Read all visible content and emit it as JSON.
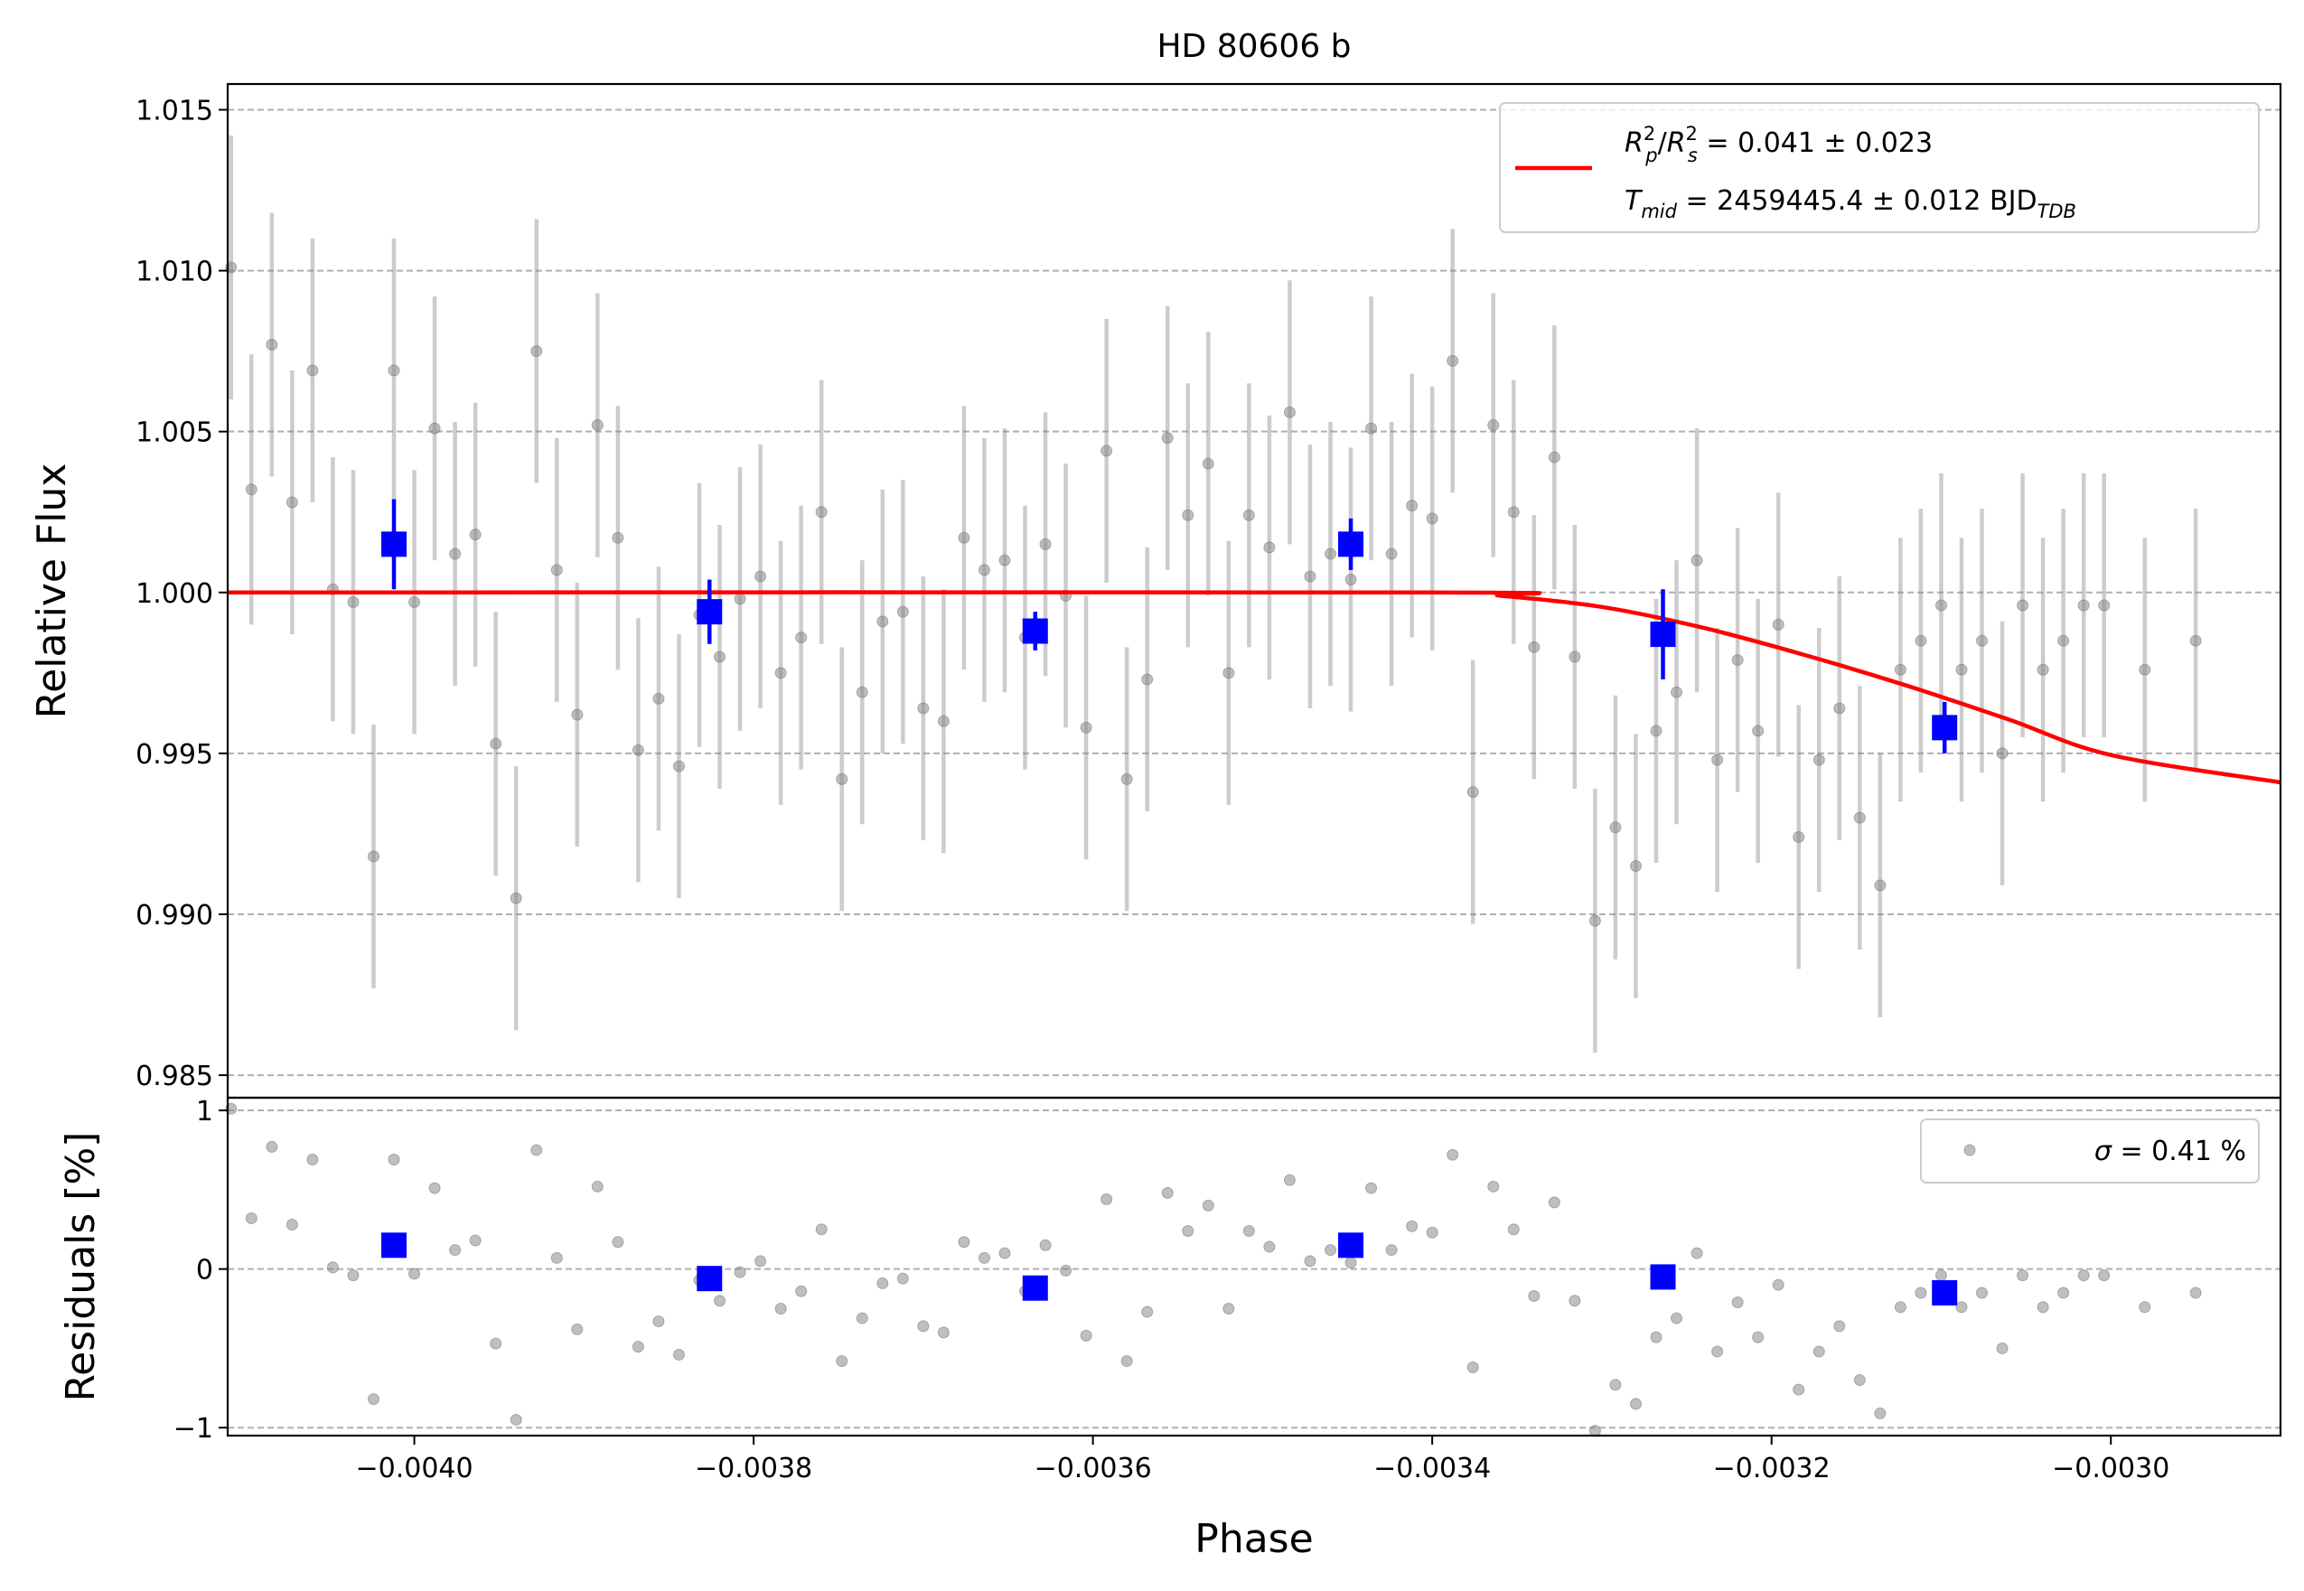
{
  "chart_data": [
    {
      "type": "scatter",
      "panel": "top",
      "title": "HD 80606 b",
      "xlabel": "",
      "ylabel": "Relative Flux",
      "xlim": [
        -0.00411,
        -0.0029
      ],
      "ylim": [
        0.9843,
        1.0158
      ],
      "yticks": [
        0.985,
        0.99,
        0.995,
        1.0,
        1.005,
        1.01,
        1.015
      ],
      "ytick_labels": [
        "0.985",
        "0.990",
        "0.995",
        "1.000",
        "1.005",
        "1.010",
        "1.015"
      ],
      "grid": "horizontal dashed",
      "legend_position": "top-right",
      "legend": {
        "line1": {
          "a": "R",
          "a_sup": "2",
          "a_sub": "p",
          "slash": "/",
          "b": "R",
          "b_sup": "2",
          "b_sub": "s",
          "rest": " = 0.041 ± 0.023"
        },
        "line2": {
          "a": "T",
          "a_sub": "mid",
          "rest": " = 2459445.4 ± 0.012 BJD",
          "unit_sub": "TDB"
        }
      },
      "model": {
        "color": "#ff0000",
        "x": [
          -0.00411,
          -0.0034,
          -0.00336,
          -0.0033,
          -0.00324,
          -0.00318,
          -0.00312,
          -0.00306,
          -0.003,
          -0.0029
        ],
        "y": [
          1.0,
          1.0,
          0.9999,
          0.99955,
          0.9989,
          0.99805,
          0.9971,
          0.99605,
          0.99495,
          0.9941
        ]
      },
      "raw": {
        "color": "#808080",
        "x": [
          -0.004108,
          -0.004096,
          -0.004084,
          -0.004072,
          -0.00406,
          -0.004048,
          -0.004036,
          -0.004024,
          -0.004012,
          -0.004,
          -0.003988,
          -0.003976,
          -0.003964,
          -0.003952,
          -0.00394,
          -0.003928,
          -0.003916,
          -0.003904,
          -0.003892,
          -0.00388,
          -0.003868,
          -0.003856,
          -0.003844,
          -0.003832,
          -0.00382,
          -0.003808,
          -0.003796,
          -0.003784,
          -0.003772,
          -0.00376,
          -0.003748,
          -0.003736,
          -0.003724,
          -0.003712,
          -0.0037,
          -0.003688,
          -0.003676,
          -0.003664,
          -0.003652,
          -0.00364,
          -0.003628,
          -0.003616,
          -0.003604,
          -0.003592,
          -0.00358,
          -0.003568,
          -0.003556,
          -0.003544,
          -0.003532,
          -0.00352,
          -0.003508,
          -0.003496,
          -0.003484,
          -0.003472,
          -0.00346,
          -0.003448,
          -0.003436,
          -0.003424,
          -0.003412,
          -0.0034,
          -0.003388,
          -0.003376,
          -0.003364,
          -0.003352,
          -0.00334,
          -0.003328,
          -0.003316,
          -0.003304,
          -0.003292,
          -0.00328,
          -0.003268,
          -0.003256,
          -0.003244,
          -0.003232,
          -0.00322,
          -0.003208,
          -0.003196,
          -0.003184,
          -0.003172,
          -0.00316,
          -0.003148,
          -0.003136,
          -0.003124,
          -0.003112,
          -0.0031,
          -0.003088,
          -0.003076,
          -0.003064,
          -0.003052,
          -0.00304,
          -0.003028,
          -0.003016,
          -0.003004,
          -0.00298,
          -0.00295
        ],
        "y": [
          1.0101,
          1.0032,
          1.0077,
          1.0028,
          1.0069,
          1.0001,
          0.9997,
          0.9918,
          1.0069,
          0.9997,
          1.0051,
          1.0012,
          1.0018,
          0.9953,
          0.9905,
          1.0075,
          1.0007,
          0.9962,
          1.0052,
          1.0017,
          0.9951,
          0.9967,
          0.9946,
          0.9993,
          0.998,
          0.9998,
          1.0005,
          0.9975,
          0.9986,
          1.0025,
          0.9942,
          0.9969,
          0.9991,
          0.9994,
          0.9964,
          0.996,
          1.0017,
          1.0007,
          1.001,
          0.9986,
          1.0015,
          0.9999,
          0.9958,
          1.0044,
          0.9942,
          0.9973,
          1.0048,
          1.0024,
          1.004,
          0.9975,
          1.0024,
          1.0014,
          1.0056,
          1.0005,
          1.0012,
          1.0004,
          1.0051,
          1.0012,
          1.0027,
          1.0023,
          1.0072,
          0.9938,
          1.0052,
          1.0025,
          0.9983,
          1.0042,
          0.998,
          0.9898,
          0.9927,
          0.9915,
          0.9957,
          0.9969,
          1.001,
          0.9948,
          0.9979,
          0.9957,
          0.999,
          0.9924,
          0.9948,
          0.9964,
          0.993,
          0.9909,
          0.9976,
          0.9985,
          0.9996,
          0.9976,
          0.9985,
          0.995,
          0.9996,
          0.9976,
          0.9985,
          0.9996,
          0.9996,
          0.9976,
          0.9985
        ],
        "err": [
          0.0041,
          0.0042,
          0.0041,
          0.0041,
          0.0041,
          0.0041,
          0.0041,
          0.0041,
          0.0041,
          0.0041,
          0.0041,
          0.0041,
          0.0041,
          0.0041,
          0.0041,
          0.0041,
          0.0041,
          0.0041,
          0.0041,
          0.0041,
          0.0041,
          0.0041,
          0.0041,
          0.0041,
          0.0041,
          0.0041,
          0.0041,
          0.0041,
          0.0041,
          0.0041,
          0.0041,
          0.0041,
          0.0041,
          0.0041,
          0.0041,
          0.0041,
          0.0041,
          0.0041,
          0.0041,
          0.0041,
          0.0041,
          0.0041,
          0.0041,
          0.0041,
          0.0041,
          0.0041,
          0.0041,
          0.0041,
          0.0041,
          0.0041,
          0.0041,
          0.0041,
          0.0041,
          0.0041,
          0.0041,
          0.0041,
          0.0041,
          0.0041,
          0.0041,
          0.0041,
          0.0041,
          0.0041,
          0.0041,
          0.0041,
          0.0041,
          0.0041,
          0.0041,
          0.0041,
          0.0041,
          0.0041,
          0.0041,
          0.0041,
          0.0041,
          0.0041,
          0.0041,
          0.0041,
          0.0041,
          0.0041,
          0.0041,
          0.0041,
          0.0041,
          0.0041,
          0.0041,
          0.0041,
          0.0041,
          0.0041,
          0.0041,
          0.0041,
          0.0041,
          0.0041,
          0.0041,
          0.0041,
          0.0041,
          0.0041,
          0.0041
        ]
      },
      "binned": {
        "color": "#0000ff",
        "x": [
          -0.004012,
          -0.003826,
          -0.003634,
          -0.003448,
          -0.003264,
          -0.003098
        ],
        "y": [
          1.0015,
          0.9994,
          0.9988,
          1.0015,
          0.9987,
          0.9958
        ],
        "err": [
          0.0014,
          0.001,
          0.0006,
          0.0008,
          0.0014,
          0.0008
        ]
      }
    },
    {
      "type": "scatter",
      "panel": "bottom",
      "xlabel": "Phase",
      "ylabel": "Residuals [%]",
      "xlim": [
        -0.00411,
        -0.0029
      ],
      "ylim": [
        -1.05,
        1.08
      ],
      "yticks": [
        -1,
        0,
        1
      ],
      "ytick_labels": [
        "−1",
        "0",
        "1"
      ],
      "xticks": [
        -0.004,
        -0.0038,
        -0.0036,
        -0.0034,
        -0.0032,
        -0.003
      ],
      "xtick_labels": [
        "−0.0040",
        "−0.0038",
        "−0.0036",
        "−0.0034",
        "−0.0032",
        "−0.0030"
      ],
      "grid": "horizontal dashed",
      "legend_position": "top-right",
      "legend": {
        "sigma": "σ",
        "rest": " = 0.41 %"
      },
      "raw": {
        "color": "#808080",
        "x": [
          -0.004108,
          -0.004096,
          -0.004084,
          -0.004072,
          -0.00406,
          -0.004048,
          -0.004036,
          -0.004024,
          -0.004012,
          -0.004,
          -0.003988,
          -0.003976,
          -0.003964,
          -0.003952,
          -0.00394,
          -0.003928,
          -0.003916,
          -0.003904,
          -0.003892,
          -0.00388,
          -0.003868,
          -0.003856,
          -0.003844,
          -0.003832,
          -0.00382,
          -0.003808,
          -0.003796,
          -0.003784,
          -0.003772,
          -0.00376,
          -0.003748,
          -0.003736,
          -0.003724,
          -0.003712,
          -0.0037,
          -0.003688,
          -0.003676,
          -0.003664,
          -0.003652,
          -0.00364,
          -0.003628,
          -0.003616,
          -0.003604,
          -0.003592,
          -0.00358,
          -0.003568,
          -0.003556,
          -0.003544,
          -0.003532,
          -0.00352,
          -0.003508,
          -0.003496,
          -0.003484,
          -0.003472,
          -0.00346,
          -0.003448,
          -0.003436,
          -0.003424,
          -0.003412,
          -0.0034,
          -0.003388,
          -0.003376,
          -0.003364,
          -0.003352,
          -0.00334,
          -0.003328,
          -0.003316,
          -0.003304,
          -0.003292,
          -0.00328,
          -0.003268,
          -0.003256,
          -0.003244,
          -0.003232,
          -0.00322,
          -0.003208,
          -0.003196,
          -0.003184,
          -0.003172,
          -0.00316,
          -0.003148,
          -0.003136,
          -0.003124,
          -0.003112,
          -0.0031,
          -0.003088,
          -0.003076,
          -0.003064,
          -0.003052,
          -0.00304,
          -0.003028,
          -0.003016,
          -0.003004,
          -0.00298,
          -0.00295
        ],
        "y": [
          1.01,
          0.32,
          0.77,
          0.28,
          0.69,
          0.01,
          -0.04,
          -0.82,
          0.69,
          -0.03,
          0.51,
          0.12,
          0.18,
          -0.47,
          -0.95,
          0.75,
          0.07,
          -0.38,
          0.52,
          0.17,
          -0.49,
          -0.33,
          -0.54,
          -0.07,
          -0.2,
          -0.02,
          0.05,
          -0.25,
          -0.14,
          0.25,
          -0.58,
          -0.31,
          -0.09,
          -0.06,
          -0.36,
          -0.4,
          0.17,
          0.07,
          0.1,
          -0.14,
          0.15,
          -0.01,
          -0.42,
          0.44,
          -0.58,
          -0.27,
          0.48,
          0.24,
          0.4,
          -0.25,
          0.24,
          0.14,
          0.56,
          0.05,
          0.12,
          0.04,
          0.51,
          0.12,
          0.27,
          0.23,
          0.72,
          -0.62,
          0.52,
          0.25,
          -0.17,
          0.42,
          -0.2,
          -1.02,
          -0.73,
          -0.85,
          -0.43,
          -0.31,
          0.1,
          -0.52,
          -0.21,
          -0.43,
          -0.1,
          -0.76,
          -0.52,
          -0.36,
          -0.7,
          -0.91,
          -0.24,
          -0.15,
          -0.04,
          -0.24,
          -0.15,
          -0.5,
          -0.04,
          -0.24,
          -0.15,
          -0.04,
          -0.04,
          -0.24,
          -0.15
        ]
      },
      "binned": {
        "color": "#0000ff",
        "x": [
          -0.004012,
          -0.003826,
          -0.003634,
          -0.003448,
          -0.003264,
          -0.003098
        ],
        "y": [
          0.15,
          -0.06,
          -0.12,
          0.15,
          -0.05,
          -0.15
        ]
      }
    }
  ]
}
